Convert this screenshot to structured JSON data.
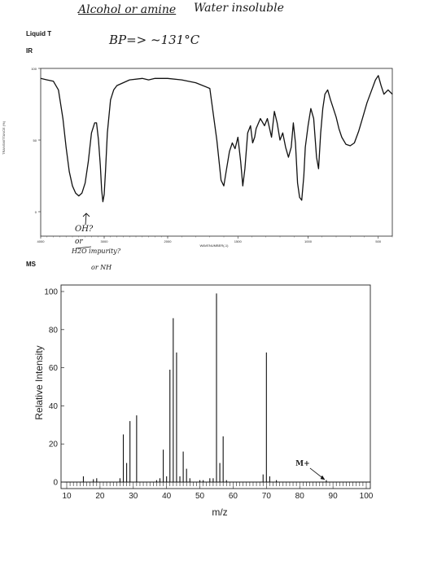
{
  "notes": {
    "top_left": "Alcohol or amine",
    "top_right": "Water insoluble",
    "bp": "BP=> ~131°C",
    "ir_annot_1": "OH?",
    "ir_annot_2": "or",
    "ir_annot_3": "H2O impurity?",
    "ir_annot_4": "or NH"
  },
  "labels": {
    "liquid": "Liquid T",
    "ir": "IR",
    "ms": "MS"
  },
  "chart_data": [
    {
      "type": "line",
      "name": "IR spectrum",
      "x_axis": "wavenumber (cm-1)",
      "xlim": [
        4000,
        400
      ],
      "ylim": [
        0,
        100
      ],
      "xlabel": "WAVENUMBER(-1)",
      "ylabel": "TRANSMITTANCE (%)",
      "yticks": [
        0,
        50,
        100
      ],
      "xtick_labels": [
        "4000",
        "3000",
        "2000",
        "1500",
        "1000",
        "500"
      ],
      "points": [
        [
          4000,
          93
        ],
        [
          3900,
          92
        ],
        [
          3800,
          91
        ],
        [
          3720,
          85
        ],
        [
          3650,
          65
        ],
        [
          3600,
          45
        ],
        [
          3550,
          28
        ],
        [
          3500,
          18
        ],
        [
          3450,
          13
        ],
        [
          3400,
          11
        ],
        [
          3350,
          13
        ],
        [
          3300,
          20
        ],
        [
          3250,
          35
        ],
        [
          3200,
          55
        ],
        [
          3150,
          62
        ],
        [
          3120,
          62
        ],
        [
          3090,
          50
        ],
        [
          3060,
          32
        ],
        [
          3040,
          15
        ],
        [
          3020,
          7
        ],
        [
          3000,
          12
        ],
        [
          2980,
          28
        ],
        [
          2950,
          55
        ],
        [
          2900,
          78
        ],
        [
          2850,
          85
        ],
        [
          2800,
          88
        ],
        [
          2600,
          92
        ],
        [
          2400,
          93
        ],
        [
          2300,
          92
        ],
        [
          2200,
          93
        ],
        [
          2000,
          93
        ],
        [
          1900,
          92
        ],
        [
          1800,
          90
        ],
        [
          1700,
          86
        ],
        [
          1650,
          50
        ],
        [
          1620,
          22
        ],
        [
          1600,
          18
        ],
        [
          1580,
          30
        ],
        [
          1560,
          42
        ],
        [
          1540,
          48
        ],
        [
          1520,
          44
        ],
        [
          1500,
          52
        ],
        [
          1480,
          35
        ],
        [
          1465,
          18
        ],
        [
          1450,
          30
        ],
        [
          1430,
          55
        ],
        [
          1410,
          60
        ],
        [
          1395,
          48
        ],
        [
          1380,
          52
        ],
        [
          1370,
          58
        ],
        [
          1340,
          65
        ],
        [
          1310,
          60
        ],
        [
          1290,
          65
        ],
        [
          1260,
          52
        ],
        [
          1240,
          70
        ],
        [
          1220,
          62
        ],
        [
          1200,
          50
        ],
        [
          1180,
          55
        ],
        [
          1160,
          45
        ],
        [
          1140,
          38
        ],
        [
          1120,
          45
        ],
        [
          1105,
          62
        ],
        [
          1090,
          48
        ],
        [
          1075,
          20
        ],
        [
          1060,
          10
        ],
        [
          1045,
          8
        ],
        [
          1030,
          25
        ],
        [
          1020,
          45
        ],
        [
          1000,
          60
        ],
        [
          980,
          72
        ],
        [
          960,
          65
        ],
        [
          940,
          38
        ],
        [
          925,
          30
        ],
        [
          910,
          55
        ],
        [
          895,
          72
        ],
        [
          880,
          82
        ],
        [
          860,
          85
        ],
        [
          840,
          78
        ],
        [
          820,
          72
        ],
        [
          800,
          66
        ],
        [
          780,
          58
        ],
        [
          760,
          52
        ],
        [
          730,
          47
        ],
        [
          700,
          46
        ],
        [
          670,
          48
        ],
        [
          640,
          56
        ],
        [
          610,
          66
        ],
        [
          580,
          76
        ],
        [
          550,
          84
        ],
        [
          520,
          92
        ],
        [
          500,
          95
        ],
        [
          480,
          88
        ],
        [
          460,
          82
        ],
        [
          430,
          85
        ],
        [
          400,
          82
        ]
      ]
    },
    {
      "type": "bar",
      "name": "Mass spectrum",
      "xlabel": "m/z",
      "ylabel": "Relative Intensity",
      "xlim": [
        10,
        100
      ],
      "ylim": [
        0,
        100
      ],
      "yticks": [
        0,
        20,
        40,
        60,
        80,
        100
      ],
      "xticks": [
        10,
        20,
        30,
        40,
        50,
        60,
        70,
        80,
        90,
        100
      ],
      "annotation": "M+",
      "annotation_mz": 88,
      "peaks": [
        [
          15,
          3
        ],
        [
          18,
          1.5
        ],
        [
          19,
          2
        ],
        [
          26,
          2
        ],
        [
          27,
          25
        ],
        [
          28,
          10
        ],
        [
          29,
          32
        ],
        [
          31,
          35
        ],
        [
          37,
          1
        ],
        [
          38,
          2
        ],
        [
          39,
          17
        ],
        [
          40,
          3
        ],
        [
          41,
          59
        ],
        [
          42,
          86
        ],
        [
          43,
          68
        ],
        [
          44,
          3
        ],
        [
          45,
          16
        ],
        [
          46,
          7
        ],
        [
          47,
          2
        ],
        [
          50,
          1
        ],
        [
          51,
          1
        ],
        [
          53,
          2
        ],
        [
          54,
          2
        ],
        [
          55,
          99
        ],
        [
          56,
          10
        ],
        [
          57,
          24
        ],
        [
          58,
          1
        ],
        [
          69,
          4
        ],
        [
          70,
          68
        ],
        [
          71,
          3
        ],
        [
          73,
          1
        ],
        [
          88,
          1
        ]
      ]
    }
  ]
}
